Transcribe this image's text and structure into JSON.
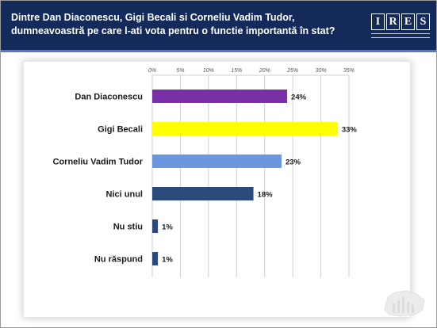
{
  "header": {
    "title": "Dintre Dan Diaconescu, Gigi Becali si Corneliu Vadim Tudor, dumneavoastră pe care l-ati vota pentru o functie importantă în stat?",
    "logo_letters": [
      "I",
      "R",
      "E",
      "S"
    ]
  },
  "chart_data": {
    "type": "bar",
    "orientation": "horizontal",
    "categories": [
      "Dan Diaconescu",
      "Gigi Becali",
      "Corneliu Vadim Tudor",
      "Nici unul",
      "Nu stiu",
      "Nu răspund"
    ],
    "values": [
      24,
      33,
      23,
      18,
      1,
      1
    ],
    "data_labels": [
      "24%",
      "33%",
      "23%",
      "18%",
      "1%",
      "1%"
    ],
    "bar_colors": [
      "#7b2fa8",
      "#ffff00",
      "#6a97de",
      "#2a4a7c",
      "#2a4a7c",
      "#2a4a7c"
    ],
    "xlim": [
      0,
      35
    ],
    "ticks": [
      0,
      5,
      10,
      15,
      20,
      25,
      30,
      35
    ],
    "tick_labels": [
      "0%",
      "5%",
      "10%",
      "15%",
      "20%",
      "25%",
      "30%",
      "35%"
    ],
    "grid": true,
    "xaxis_position": "top"
  },
  "colors": {
    "header_bg": "#142a5a",
    "header_accent": "#5b79b6",
    "grid": "#d0d0d0"
  }
}
